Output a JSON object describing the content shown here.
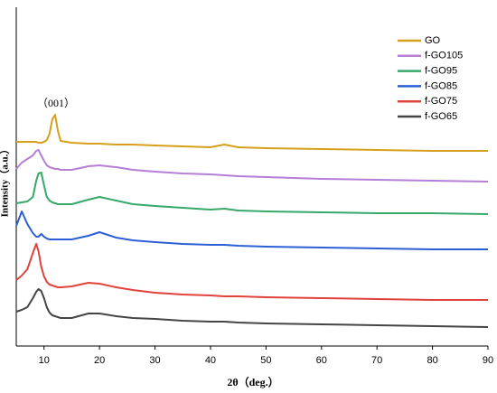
{
  "chart_data": {
    "type": "line",
    "x_label": "2θ（deg.）",
    "y_label": "Intensity（a.u.）",
    "annotation": "（001）",
    "x": [
      5,
      6,
      7,
      8,
      8.6,
      9,
      9.5,
      10,
      10.5,
      11,
      11.5,
      12,
      12.5,
      13,
      15,
      18,
      20,
      23,
      26,
      30,
      35,
      40,
      42.5,
      45,
      50,
      60,
      70,
      80,
      90
    ],
    "xlim": [
      5,
      90
    ],
    "xticks": [
      10,
      20,
      30,
      40,
      50,
      60,
      70,
      80,
      90
    ],
    "ylim": [
      0,
      375
    ],
    "legend": "upper right",
    "series": [
      {
        "name": "GO",
        "color": "#d6a01c",
        "values": [
          226,
          226,
          226,
          226,
          226,
          225,
          225,
          226,
          228,
          235,
          251,
          256,
          238,
          227,
          225,
          224,
          224,
          223,
          223,
          222,
          221,
          220,
          223,
          220,
          219,
          218,
          217,
          216,
          216
        ]
      },
      {
        "name": "f-GO105",
        "color": "#b57fd8",
        "values": [
          196,
          203,
          207,
          211,
          216,
          217,
          211,
          205,
          200,
          198,
          197,
          196,
          196,
          195,
          195,
          199,
          200,
          198,
          195,
          193,
          191,
          190,
          189,
          188,
          187,
          185,
          184,
          183,
          182
        ]
      },
      {
        "name": "f-GO95",
        "color": "#38a86a",
        "values": [
          158,
          159,
          160,
          165,
          183,
          191,
          192,
          178,
          165,
          161,
          159,
          158,
          157,
          157,
          157,
          162,
          165,
          161,
          157,
          155,
          153,
          151,
          152,
          150,
          149,
          148,
          147,
          147,
          146
        ]
      },
      {
        "name": "f-GO85",
        "color": "#2c5fd6",
        "values": [
          133,
          149,
          135,
          125,
          121,
          121,
          124,
          121,
          119,
          118,
          118,
          118,
          118,
          118,
          118,
          122,
          126,
          120,
          117,
          115,
          113,
          112,
          112,
          111,
          110,
          109,
          108,
          107,
          107
        ]
      },
      {
        "name": "f-GO75",
        "color": "#e0423c",
        "values": [
          73,
          78,
          85,
          103,
          113,
          105,
          88,
          77,
          71,
          68,
          67,
          66,
          65,
          65,
          66,
          70,
          69,
          65,
          62,
          59,
          57,
          56,
          55,
          55,
          54,
          53,
          52,
          51,
          51
        ]
      },
      {
        "name": "f-GO65",
        "color": "#454545",
        "values": [
          38,
          40,
          43,
          53,
          60,
          63,
          61,
          53,
          43,
          37,
          34,
          33,
          32,
          31,
          31,
          36,
          36,
          33,
          31,
          30,
          28,
          27,
          27,
          26,
          25,
          24,
          23,
          22,
          21
        ]
      }
    ]
  }
}
